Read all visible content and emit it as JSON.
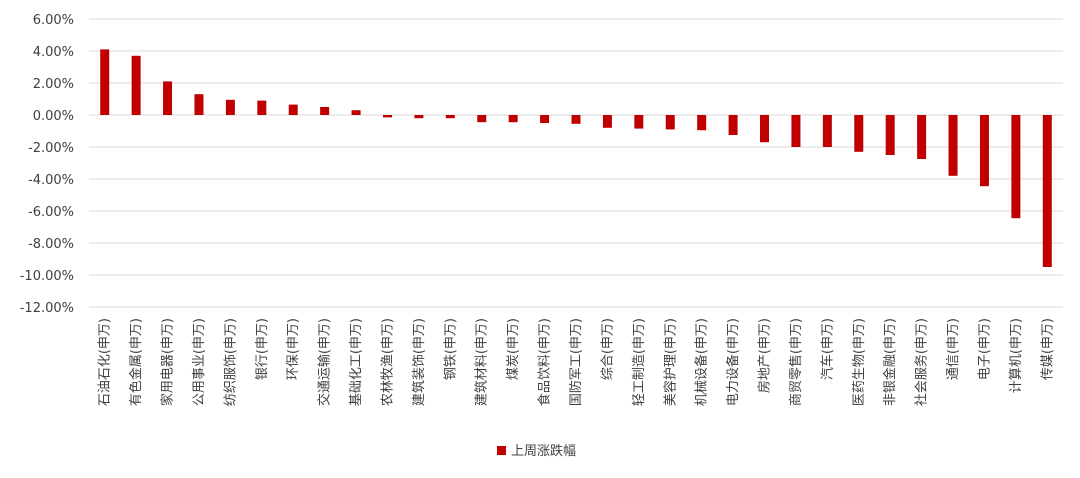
{
  "chart_data": {
    "type": "bar",
    "categories": [
      "石油石化(申万)",
      "有色金属(申万)",
      "家用电器(申万)",
      "公用事业(申万)",
      "纺织服饰(申万)",
      "银行(申万)",
      "环保(申万)",
      "交通运输(申万)",
      "基础化工(申万)",
      "农林牧渔(申万)",
      "建筑装饰(申万)",
      "钢铁(申万)",
      "建筑材料(申万)",
      "煤炭(申万)",
      "食品饮料(申万)",
      "国防军工(申万)",
      "综合(申万)",
      "轻工制造(申万)",
      "美容护理(申万)",
      "机械设备(申万)",
      "电力设备(申万)",
      "房地产(申万)",
      "商贸零售(申万)",
      "汽车(申万)",
      "医药生物(申万)",
      "非银金融(申万)",
      "社会服务(申万)",
      "通信(申万)",
      "电子(申万)",
      "计算机(申万)",
      "传媒(申万)"
    ],
    "series": [
      {
        "name": "上周涨跌幅",
        "color": "#c00000",
        "values": [
          4.1,
          3.7,
          2.1,
          1.3,
          0.95,
          0.9,
          0.65,
          0.5,
          0.3,
          -0.15,
          -0.2,
          -0.2,
          -0.45,
          -0.45,
          -0.5,
          -0.55,
          -0.8,
          -0.85,
          -0.9,
          -0.95,
          -1.25,
          -1.7,
          -2.0,
          -2.0,
          -2.3,
          -2.5,
          -2.75,
          -3.8,
          -4.45,
          -6.45,
          -9.5
        ]
      }
    ],
    "ylim": [
      -12,
      6
    ],
    "yticks": [
      6,
      4,
      2,
      0,
      -2,
      -4,
      -6,
      -8,
      -10,
      -12
    ],
    "ytick_labels": [
      "6.00%",
      "4.00%",
      "2.00%",
      "0.00%",
      "-2.00%",
      "-4.00%",
      "-6.00%",
      "-8.00%",
      "-10.00%",
      "-12.00%"
    ],
    "grid": true,
    "gridColor": "#d9d9d9",
    "legend_position": "bottom"
  }
}
